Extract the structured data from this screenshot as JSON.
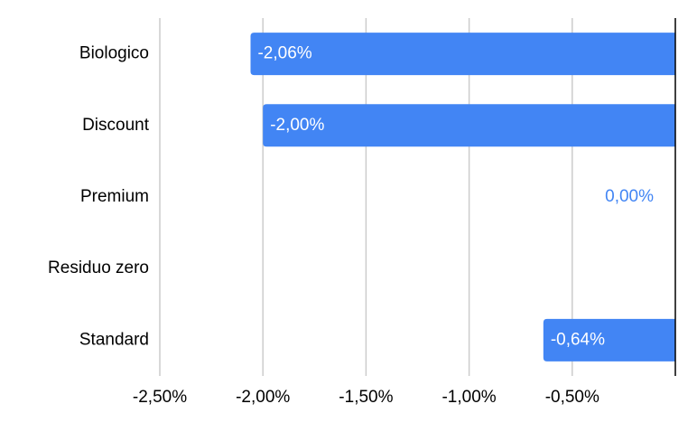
{
  "chart_data": {
    "type": "bar",
    "orientation": "horizontal",
    "categories": [
      "Biologico",
      "Discount",
      "Premium",
      "Residuo zero",
      "Standard"
    ],
    "values": [
      -2.06,
      -2.0,
      0.0,
      null,
      -0.64
    ],
    "value_labels": [
      "-2,06%",
      "-2,00%",
      "0,00%",
      null,
      "-0,64%"
    ],
    "color": "#4285f4",
    "xlim": [
      -2.5,
      0
    ],
    "xticks": [
      {
        "value": -2.5,
        "label": "-2,50%"
      },
      {
        "value": -2.0,
        "label": "-2,00%"
      },
      {
        "value": -1.5,
        "label": "-1,50%"
      },
      {
        "value": -1.0,
        "label": "-1,00%"
      },
      {
        "value": -0.5,
        "label": "-0,50%"
      }
    ],
    "grid": true
  }
}
